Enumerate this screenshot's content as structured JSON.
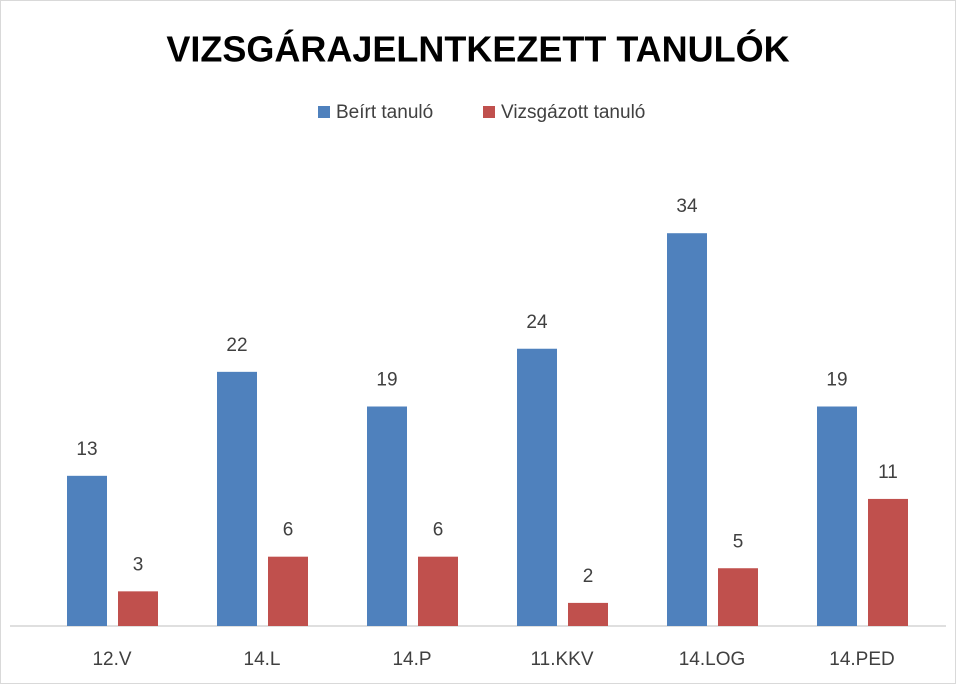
{
  "chart_data": {
    "type": "bar",
    "title": "VIZSGÁRAJELNTKEZETT TANULÓK",
    "categories": [
      "12.V",
      "14.L",
      "14.P",
      "11.KKV",
      "14.LOG",
      "14.PED"
    ],
    "series": [
      {
        "name": "Beírt tanuló",
        "color": "#4f81bd",
        "values": [
          13,
          22,
          19,
          24,
          34,
          19
        ]
      },
      {
        "name": "Vizsgázott tanuló",
        "color": "#c0504d",
        "values": [
          3,
          6,
          6,
          2,
          5,
          11
        ]
      }
    ],
    "ylim": [
      0,
      38
    ],
    "legend": "top"
  }
}
